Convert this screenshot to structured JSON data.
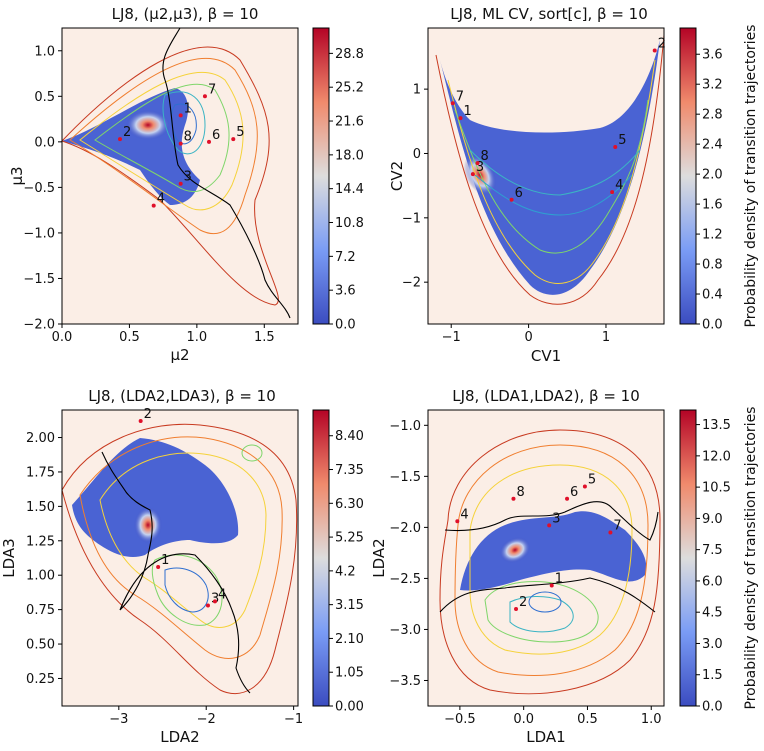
{
  "chart_data": [
    {
      "type": "heatmap",
      "title": "LJ8, (μ2,μ3), β = 10",
      "xlabel": "μ2",
      "ylabel": "μ3",
      "xlim": [
        0.0,
        1.75
      ],
      "ylim": [
        -2.0,
        1.25
      ],
      "xticks": [
        "0.0",
        "0.5",
        "1.0",
        "1.5"
      ],
      "xtick_values": [
        0.0,
        0.5,
        1.0,
        1.5
      ],
      "yticks": [
        "−2.0",
        "−1.5",
        "−1.0",
        "−0.5",
        "0.0",
        "0.5",
        "1.0"
      ],
      "ytick_values": [
        -2.0,
        -1.5,
        -1.0,
        -0.5,
        0.0,
        0.5,
        1.0
      ],
      "colorbar": {
        "ticks": [
          "0.0",
          "3.6",
          "7.2",
          "10.8",
          "14.4",
          "18.0",
          "21.6",
          "25.2",
          "28.8"
        ],
        "min": 0,
        "max": 31.5,
        "label": ""
      },
      "points": [
        {
          "label": "1",
          "x": 0.88,
          "y": 0.29
        },
        {
          "label": "2",
          "x": 0.43,
          "y": 0.03
        },
        {
          "label": "3",
          "x": 0.88,
          "y": -0.46
        },
        {
          "label": "4",
          "x": 0.68,
          "y": -0.7
        },
        {
          "label": "5",
          "x": 1.27,
          "y": 0.03
        },
        {
          "label": "6",
          "x": 1.09,
          "y": 0.0
        },
        {
          "label": "7",
          "x": 1.06,
          "y": 0.5
        },
        {
          "label": "8",
          "x": 0.88,
          "y": -0.02
        }
      ]
    },
    {
      "type": "heatmap",
      "title": "LJ8, ML CV, sort[c], β = 10",
      "xlabel": "CV1",
      "ylabel": "CV2",
      "xlim": [
        -1.3,
        1.75
      ],
      "ylim": [
        -2.65,
        1.95
      ],
      "xticks": [
        "−1",
        "0",
        "1"
      ],
      "xtick_values": [
        -1,
        0,
        1
      ],
      "yticks": [
        "−2",
        "−1",
        "0",
        "1"
      ],
      "ytick_values": [
        -2,
        -1,
        0,
        1
      ],
      "colorbar": {
        "ticks": [
          "0.0",
          "0.4",
          "0.8",
          "1.2",
          "1.6",
          "2.0",
          "2.4",
          "2.8",
          "3.2",
          "3.6"
        ],
        "min": 0,
        "max": 3.95,
        "label": "Probability density of transition trajectories"
      },
      "points": [
        {
          "label": "1",
          "x": -0.88,
          "y": 0.55
        },
        {
          "label": "2",
          "x": 1.63,
          "y": 1.6
        },
        {
          "label": "3",
          "x": -0.72,
          "y": -0.32
        },
        {
          "label": "4",
          "x": 1.08,
          "y": -0.6
        },
        {
          "label": "5",
          "x": 1.12,
          "y": 0.1
        },
        {
          "label": "6",
          "x": -0.22,
          "y": -0.72
        },
        {
          "label": "7",
          "x": -0.98,
          "y": 0.78
        },
        {
          "label": "8",
          "x": -0.66,
          "y": -0.15
        }
      ]
    },
    {
      "type": "heatmap",
      "title": "LJ8, (LDA2,LDA3), β = 10",
      "xlabel": "LDA2",
      "ylabel": "LDA3",
      "xlim": [
        -3.65,
        -0.95
      ],
      "ylim": [
        0.05,
        2.2
      ],
      "xticks": [
        "−3",
        "−2",
        "−1"
      ],
      "xtick_values": [
        -3,
        -2,
        -1
      ],
      "yticks": [
        "0.25",
        "0.50",
        "0.75",
        "1.00",
        "1.25",
        "1.50",
        "1.75",
        "2.00"
      ],
      "ytick_values": [
        0.25,
        0.5,
        0.75,
        1.0,
        1.25,
        1.5,
        1.75,
        2.0
      ],
      "colorbar": {
        "ticks": [
          "0.00",
          "1.05",
          "2.10",
          "3.15",
          "4.2",
          "5.25",
          "6.30",
          "7.35",
          "8.40"
        ],
        "min": 0,
        "max": 9.2,
        "label": ""
      },
      "points": [
        {
          "label": "1",
          "x": -2.55,
          "y": 1.06
        },
        {
          "label": "2",
          "x": -2.75,
          "y": 2.12
        },
        {
          "label": "3",
          "x": -1.98,
          "y": 0.78
        },
        {
          "label": "4",
          "x": -1.9,
          "y": 0.81
        }
      ]
    },
    {
      "type": "heatmap",
      "title": "LJ8, (LDA1,LDA2), β = 10",
      "xlabel": "LDA1",
      "ylabel": "LDA2",
      "xlim": [
        -0.75,
        1.1
      ],
      "ylim": [
        -3.75,
        -0.85
      ],
      "xticks": [
        "−0.5",
        "0.0",
        "0.5",
        "1.0"
      ],
      "xtick_values": [
        -0.5,
        0.0,
        0.5,
        1.0
      ],
      "yticks": [
        "−3.5",
        "−3.0",
        "−2.5",
        "−2.0",
        "−1.5",
        "−1.0"
      ],
      "ytick_values": [
        -3.5,
        -3.0,
        -2.5,
        -2.0,
        -1.5,
        -1.0
      ],
      "colorbar": {
        "ticks": [
          "0.0",
          "1.5",
          "3.0",
          "4.5",
          "6.0",
          "7.5",
          "9.0",
          "10.5",
          "12.0",
          "13.5"
        ],
        "min": 0,
        "max": 14.2,
        "label": "Probability density of transition trajectories"
      },
      "points": [
        {
          "label": "1",
          "x": 0.22,
          "y": -2.57
        },
        {
          "label": "2",
          "x": -0.06,
          "y": -2.8
        },
        {
          "label": "3",
          "x": 0.2,
          "y": -1.98
        },
        {
          "label": "4",
          "x": -0.52,
          "y": -1.94
        },
        {
          "label": "5",
          "x": 0.48,
          "y": -1.6
        },
        {
          "label": "6",
          "x": 0.34,
          "y": -1.72
        },
        {
          "label": "7",
          "x": 0.68,
          "y": -2.05
        },
        {
          "label": "8",
          "x": -0.08,
          "y": -1.72
        }
      ]
    }
  ]
}
